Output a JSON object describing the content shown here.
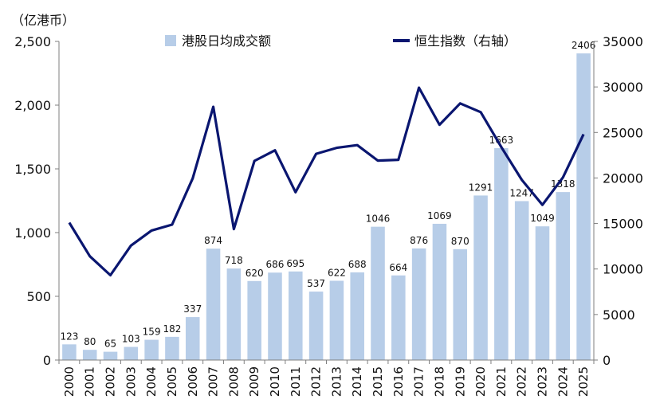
{
  "chart_data": {
    "type": "bar+line",
    "unit_label": "（亿港币）",
    "categories": [
      "2000",
      "2001",
      "2002",
      "2003",
      "2004",
      "2005",
      "2006",
      "2007",
      "2008",
      "2009",
      "2010",
      "2011",
      "2012",
      "2013",
      "2014",
      "2015",
      "2016",
      "2017",
      "2018",
      "2019",
      "2020",
      "2021",
      "2022",
      "2023",
      "2024",
      "2025"
    ],
    "left_axis": {
      "min": 0,
      "max": 2500,
      "ticks": [
        0,
        500,
        1000,
        1500,
        2000,
        2500
      ],
      "tick_labels": [
        "0",
        "500",
        "1,000",
        "1,500",
        "2,000",
        "2,500"
      ]
    },
    "right_axis": {
      "min": 0,
      "max": 35000,
      "ticks": [
        0,
        5000,
        10000,
        15000,
        20000,
        25000,
        30000,
        35000
      ],
      "tick_labels": [
        "0",
        "5000",
        "10000",
        "15000",
        "20000",
        "25000",
        "30000",
        "35000"
      ]
    },
    "series": [
      {
        "name": "港股日均成交额",
        "kind": "bar",
        "axis": "left",
        "color": "#b7cde8",
        "values": [
          123,
          80,
          65,
          103,
          159,
          182,
          337,
          874,
          718,
          620,
          686,
          695,
          537,
          622,
          688,
          1046,
          664,
          876,
          1069,
          870,
          1291,
          1663,
          1247,
          1049,
          1318,
          2406
        ],
        "labels": [
          "123",
          "80",
          "65",
          "103",
          "159",
          "182",
          "337",
          "874",
          "718",
          "620",
          "686",
          "695",
          "537",
          "622",
          "688",
          "1046",
          "664",
          "876",
          "1069",
          "870",
          "1291",
          "1663",
          "1247",
          "1049",
          "1318",
          "2406"
        ]
      },
      {
        "name": "恒生指数（右轴）",
        "kind": "line",
        "axis": "right",
        "color": "#0a1670",
        "values": [
          15095,
          11397,
          9321,
          12576,
          14230,
          14876,
          19965,
          27813,
          14388,
          21873,
          23035,
          18434,
          22657,
          23306,
          23605,
          21914,
          22001,
          29919,
          25846,
          28190,
          27231,
          23398,
          19781,
          17047,
          20060,
          24800
        ]
      }
    ],
    "legend_placement": "top",
    "grid": false
  }
}
